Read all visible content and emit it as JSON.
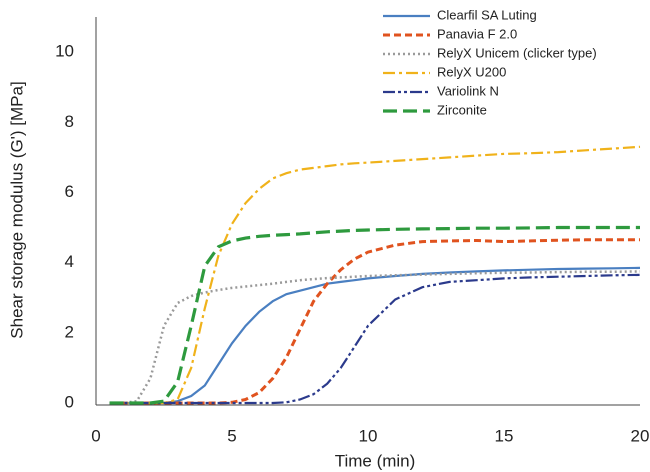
{
  "chart_data": {
    "type": "line",
    "x_label": "Time (min)",
    "y_label": "Shear storage modulus (G') [MPa]",
    "xlim": [
      0,
      20
    ],
    "ylim": [
      0,
      11
    ],
    "xticks": [
      0,
      5,
      10,
      15,
      20
    ],
    "yticks": [
      0,
      2,
      4,
      6,
      8,
      10
    ],
    "grid": false,
    "legend": "upper right",
    "x": [
      0.5,
      1,
      1.5,
      2,
      2.5,
      3,
      3.5,
      4,
      4.5,
      5,
      5.5,
      6,
      6.5,
      7,
      7.5,
      8,
      8.5,
      9,
      9.5,
      10,
      11,
      12,
      13,
      14,
      15,
      16,
      17,
      18,
      19,
      20
    ],
    "series": [
      {
        "name": "Clearfil SA Luting",
        "color": "#4a7fc1",
        "values": [
          0,
          0,
          0,
          0,
          0,
          0.05,
          0.2,
          0.5,
          1.1,
          1.7,
          2.2,
          2.6,
          2.9,
          3.1,
          3.2,
          3.3,
          3.4,
          3.45,
          3.5,
          3.55,
          3.62,
          3.68,
          3.72,
          3.75,
          3.78,
          3.8,
          3.82,
          3.83,
          3.84,
          3.85
        ]
      },
      {
        "name": "Panavia F 2.0",
        "color": "#e0531f",
        "values": [
          0,
          0,
          0,
          0,
          0,
          0,
          0,
          0,
          0,
          0.02,
          0.1,
          0.3,
          0.7,
          1.3,
          2.1,
          2.9,
          3.4,
          3.8,
          4.1,
          4.3,
          4.5,
          4.6,
          4.62,
          4.63,
          4.6,
          4.62,
          4.64,
          4.65,
          4.65,
          4.65
        ]
      },
      {
        "name": "RelyX Unicem (clicker type)",
        "color": "#9a9a9a",
        "values": [
          0,
          0,
          0.05,
          0.7,
          2.2,
          2.85,
          3.05,
          3.15,
          3.22,
          3.28,
          3.32,
          3.36,
          3.4,
          3.45,
          3.5,
          3.53,
          3.56,
          3.58,
          3.6,
          3.62,
          3.64,
          3.66,
          3.68,
          3.7,
          3.71,
          3.72,
          3.73,
          3.74,
          3.74,
          3.75
        ]
      },
      {
        "name": "RelyX U200",
        "color": "#f0b21a",
        "values": [
          0,
          0,
          0,
          0,
          0,
          0.1,
          1.0,
          2.7,
          4.2,
          5.1,
          5.7,
          6.1,
          6.4,
          6.55,
          6.65,
          6.7,
          6.75,
          6.8,
          6.83,
          6.85,
          6.9,
          6.95,
          7.0,
          7.05,
          7.1,
          7.12,
          7.15,
          7.2,
          7.25,
          7.3
        ]
      },
      {
        "name": "Variolink N",
        "color": "#2b3a8c",
        "values": [
          0,
          0,
          0,
          0,
          0,
          0,
          0,
          0,
          0,
          0,
          0,
          0,
          0,
          0.02,
          0.1,
          0.25,
          0.55,
          1.0,
          1.6,
          2.2,
          2.95,
          3.3,
          3.45,
          3.5,
          3.55,
          3.58,
          3.6,
          3.62,
          3.64,
          3.65
        ]
      },
      {
        "name": "Zirconite",
        "color": "#2e9a3e",
        "values": [
          0,
          0,
          0,
          0,
          0.05,
          0.6,
          2.2,
          3.9,
          4.45,
          4.62,
          4.7,
          4.75,
          4.78,
          4.8,
          4.82,
          4.85,
          4.88,
          4.9,
          4.92,
          4.93,
          4.95,
          4.96,
          4.97,
          4.98,
          4.98,
          4.99,
          5,
          5,
          5,
          5
        ]
      }
    ]
  }
}
